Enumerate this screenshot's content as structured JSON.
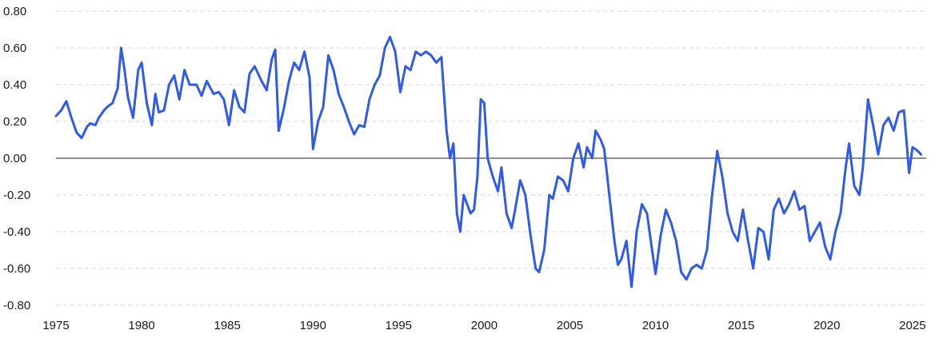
{
  "chart_data": {
    "type": "line",
    "title": "",
    "xlabel": "",
    "ylabel": "",
    "xlim": [
      1975,
      2025.8
    ],
    "ylim": [
      -0.8,
      0.8
    ],
    "grid": true,
    "legend": "none",
    "color": "#2f5be7",
    "x_ticks": [
      1975,
      1980,
      1985,
      1990,
      1995,
      2000,
      2005,
      2010,
      2015,
      2020,
      2025
    ],
    "x_tick_labels": [
      "1975",
      "1980",
      "1985",
      "1990",
      "1995",
      "2000",
      "2005",
      "2010",
      "2015",
      "2020",
      "2025"
    ],
    "y_ticks": [
      0.8,
      0.6,
      0.4,
      0.2,
      0.0,
      -0.2,
      -0.4,
      -0.6,
      -0.8
    ],
    "y_tick_labels": [
      "0.80",
      "0.60",
      "0.40",
      "0.20",
      "0.00",
      "-0.20",
      "-0.40",
      "-0.60",
      "-0.80"
    ],
    "series": [
      {
        "x": [
          1975.0,
          1975.3,
          1975.6,
          1975.9,
          1976.2,
          1976.5,
          1976.8,
          1977.0,
          1977.3,
          1977.5,
          1977.8,
          1978.0,
          1978.3,
          1978.6,
          1978.8,
          1979.0,
          1979.2,
          1979.5,
          1979.8,
          1980.0,
          1980.3,
          1980.6,
          1980.8,
          1981.0,
          1981.3,
          1981.6,
          1981.9,
          1982.2,
          1982.5,
          1982.8,
          1983.2,
          1983.5,
          1983.8,
          1984.2,
          1984.5,
          1984.8,
          1985.1,
          1985.4,
          1985.7,
          1986.0,
          1986.3,
          1986.6,
          1987.0,
          1987.3,
          1987.6,
          1987.8,
          1988.0,
          1988.3,
          1988.6,
          1988.9,
          1989.2,
          1989.5,
          1989.8,
          1990.0,
          1990.3,
          1990.6,
          1990.9,
          1991.2,
          1991.5,
          1991.8,
          1992.1,
          1992.4,
          1992.7,
          1993.0,
          1993.3,
          1993.6,
          1993.9,
          1994.2,
          1994.5,
          1994.8,
          1995.1,
          1995.4,
          1995.7,
          1996.0,
          1996.3,
          1996.6,
          1996.9,
          1997.2,
          1997.5,
          1997.8,
          1998.0,
          1998.2,
          1998.4,
          1998.6,
          1998.8,
          1999.0,
          1999.2,
          1999.4,
          1999.6,
          1999.8,
          2000.0,
          2000.2,
          2000.5,
          2000.8,
          2001.0,
          2001.3,
          2001.6,
          2001.8,
          2002.1,
          2002.4,
          2002.7,
          2003.0,
          2003.2,
          2003.5,
          2003.8,
          2004.0,
          2004.3,
          2004.6,
          2004.9,
          2005.2,
          2005.5,
          2005.8,
          2006.0,
          2006.3,
          2006.5,
          2006.8,
          2007.0,
          2007.3,
          2007.6,
          2007.8,
          2008.0,
          2008.3,
          2008.6,
          2008.9,
          2009.2,
          2009.5,
          2009.8,
          2010.0,
          2010.3,
          2010.6,
          2010.9,
          2011.2,
          2011.5,
          2011.8,
          2012.1,
          2012.4,
          2012.7,
          2013.0,
          2013.3,
          2013.6,
          2013.9,
          2014.2,
          2014.5,
          2014.8,
          2015.1,
          2015.4,
          2015.7,
          2016.0,
          2016.3,
          2016.6,
          2016.9,
          2017.2,
          2017.5,
          2017.8,
          2018.1,
          2018.4,
          2018.7,
          2019.0,
          2019.3,
          2019.6,
          2019.9,
          2020.2,
          2020.5,
          2020.8,
          2021.1,
          2021.3,
          2021.6,
          2021.9,
          2022.1,
          2022.4,
          2022.7,
          2023.0,
          2023.3,
          2023.6,
          2023.9,
          2024.2,
          2024.5,
          2024.8,
          2025.0,
          2025.3,
          2025.5
        ],
        "y": [
          0.23,
          0.26,
          0.31,
          0.22,
          0.14,
          0.11,
          0.17,
          0.19,
          0.18,
          0.22,
          0.26,
          0.28,
          0.3,
          0.38,
          0.6,
          0.48,
          0.33,
          0.22,
          0.48,
          0.52,
          0.3,
          0.18,
          0.35,
          0.25,
          0.26,
          0.4,
          0.45,
          0.32,
          0.48,
          0.4,
          0.4,
          0.34,
          0.42,
          0.35,
          0.36,
          0.32,
          0.18,
          0.37,
          0.28,
          0.25,
          0.46,
          0.5,
          0.42,
          0.37,
          0.54,
          0.59,
          0.15,
          0.27,
          0.42,
          0.52,
          0.48,
          0.58,
          0.44,
          0.05,
          0.2,
          0.28,
          0.56,
          0.48,
          0.35,
          0.28,
          0.2,
          0.13,
          0.18,
          0.17,
          0.32,
          0.4,
          0.45,
          0.6,
          0.66,
          0.58,
          0.36,
          0.5,
          0.48,
          0.58,
          0.56,
          0.58,
          0.56,
          0.52,
          0.55,
          0.15,
          0.0,
          0.08,
          -0.3,
          -0.4,
          -0.2,
          -0.25,
          -0.3,
          -0.28,
          -0.1,
          0.32,
          0.3,
          0.0,
          -0.1,
          -0.18,
          -0.05,
          -0.3,
          -0.38,
          -0.28,
          -0.12,
          -0.2,
          -0.42,
          -0.6,
          -0.62,
          -0.5,
          -0.2,
          -0.22,
          -0.1,
          -0.12,
          -0.18,
          0.0,
          0.08,
          -0.05,
          0.06,
          0.0,
          0.15,
          0.1,
          0.05,
          -0.2,
          -0.45,
          -0.58,
          -0.55,
          -0.45,
          -0.7,
          -0.4,
          -0.25,
          -0.3,
          -0.5,
          -0.63,
          -0.42,
          -0.28,
          -0.35,
          -0.45,
          -0.62,
          -0.66,
          -0.6,
          -0.58,
          -0.6,
          -0.5,
          -0.2,
          0.04,
          -0.1,
          -0.3,
          -0.4,
          -0.45,
          -0.28,
          -0.45,
          -0.6,
          -0.38,
          -0.4,
          -0.55,
          -0.28,
          -0.22,
          -0.3,
          -0.25,
          -0.18,
          -0.28,
          -0.26,
          -0.45,
          -0.4,
          -0.35,
          -0.48,
          -0.55,
          -0.4,
          -0.3,
          -0.05,
          0.08,
          -0.15,
          -0.2,
          -0.05,
          0.32,
          0.18,
          0.02,
          0.18,
          0.22,
          0.15,
          0.25,
          0.26,
          -0.08,
          0.06,
          0.04,
          0.02
        ]
      }
    ]
  }
}
